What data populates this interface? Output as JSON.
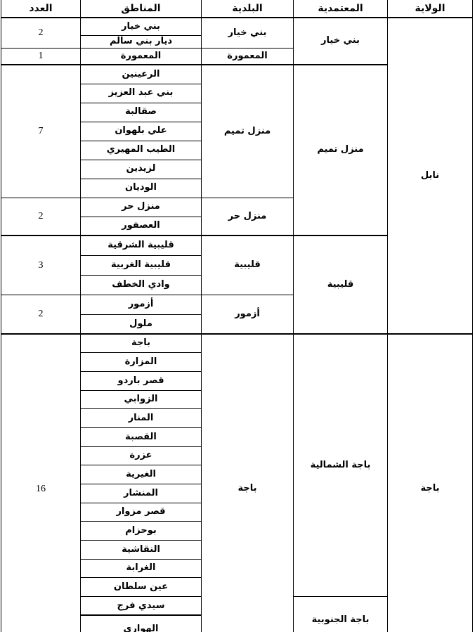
{
  "table": {
    "headers": {
      "count": "العدد",
      "areas": "المناطق",
      "municipality": "البلدية",
      "delegation": "المعتمدية",
      "state": "الولاية"
    },
    "states": [
      "نابل",
      "باجة"
    ],
    "delegations": [
      "بني خيار",
      "منزل تميم",
      "قليبية",
      "باجة الشمالية",
      "باجة الجنوبية"
    ],
    "municipalities": [
      "بني خيار",
      "المعمورة",
      "منزل تميم",
      "منزل حر",
      "قليبية",
      "أزمور",
      "باجة"
    ],
    "counts": [
      "2",
      "1",
      "7",
      "2",
      "3",
      "2",
      "16"
    ],
    "areas": [
      "بني خيار",
      "ديار بني سالم",
      "المعمورة",
      "الرعينين",
      "بني عبد العزيز",
      "صقالبة",
      "علي بلهوان",
      "الطيب المهيري",
      "لزيدين",
      "الوديان",
      "منزل حر",
      "العصفور",
      "قليبية الشرقية",
      "قليبية الغربية",
      "وادي الخطف",
      "أزمور",
      "ملول",
      "باجة",
      "المزارة",
      "قصر باردو",
      "الزوابي",
      "المنار",
      "القصبة",
      "عزرة",
      "الغيرية",
      "المنشار",
      "قصر مزوار",
      "بوحزام",
      "النقاشية",
      "الغرابة",
      "عين سلطان",
      "سيدي فرج",
      "الهواري"
    ]
  }
}
